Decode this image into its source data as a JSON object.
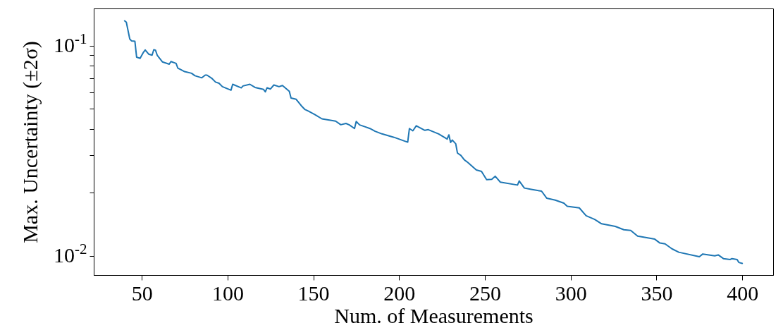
{
  "chart_data": {
    "type": "line",
    "xlabel": "Num. of Measurements",
    "ylabel": "Max. Uncertainty (±2σ)",
    "log": "y",
    "grid": false,
    "marker": "none",
    "line_style": "solid",
    "xlim": [
      22,
      418
    ],
    "xticks": [
      50,
      100,
      150,
      200,
      250,
      300,
      350,
      400
    ],
    "ylim": [
      0.0081,
      0.15
    ],
    "yticks": [
      {
        "value": 0.01,
        "label": "10$^{-2}$"
      },
      {
        "value": 0.02,
        "label": null
      },
      {
        "value": 0.03,
        "label": null
      },
      {
        "value": 0.04,
        "label": null
      },
      {
        "value": 0.05,
        "label": null
      },
      {
        "value": 0.06,
        "label": null
      },
      {
        "value": 0.07,
        "label": null
      },
      {
        "value": 0.08,
        "label": null
      },
      {
        "value": 0.09,
        "label": null
      },
      {
        "value": 0.1,
        "label": "10$^{-1}$"
      }
    ],
    "series": [
      {
        "color": "#1f77b4",
        "x": [
          40,
          41,
          43,
          44,
          46,
          47,
          49,
          51,
          52,
          54,
          56,
          57,
          58,
          59,
          62,
          66,
          67,
          70,
          71,
          75,
          79,
          81,
          85,
          87,
          88,
          91,
          93,
          95,
          97,
          102,
          103,
          108,
          109,
          113,
          116,
          121,
          122,
          123,
          125,
          127,
          130,
          132,
          136,
          137,
          140,
          143,
          145,
          147,
          151,
          155,
          163,
          166,
          169,
          171,
          174,
          175,
          177,
          180,
          183,
          186,
          190,
          197,
          205,
          206,
          208,
          210,
          215,
          217,
          223,
          228,
          229,
          230,
          231,
          233,
          234,
          236,
          238,
          240,
          245,
          248,
          251,
          254,
          256,
          259,
          269,
          270,
          273,
          277,
          283,
          286,
          291,
          296,
          298,
          305,
          309,
          314,
          318,
          326,
          331,
          335,
          339,
          349,
          352,
          355,
          359,
          363,
          375,
          377,
          384,
          386,
          389,
          393,
          394,
          397,
          398,
          400
        ],
        "values": [
          0.131,
          0.129,
          0.1074,
          0.1052,
          0.1047,
          0.088,
          0.0869,
          0.0929,
          0.0952,
          0.091,
          0.0899,
          0.0955,
          0.095,
          0.0899,
          0.0836,
          0.0815,
          0.0839,
          0.0822,
          0.0781,
          0.0751,
          0.0738,
          0.0718,
          0.0702,
          0.0723,
          0.0723,
          0.0696,
          0.067,
          0.0662,
          0.0637,
          0.0613,
          0.0654,
          0.0629,
          0.0642,
          0.0654,
          0.0632,
          0.0618,
          0.0602,
          0.0629,
          0.0621,
          0.0649,
          0.0637,
          0.0645,
          0.0605,
          0.0563,
          0.0555,
          0.0517,
          0.0497,
          0.0488,
          0.0469,
          0.0448,
          0.0437,
          0.042,
          0.0426,
          0.0419,
          0.0403,
          0.0435,
          0.0419,
          0.0411,
          0.0403,
          0.0391,
          0.038,
          0.0366,
          0.0347,
          0.0403,
          0.0393,
          0.0415,
          0.0395,
          0.0398,
          0.038,
          0.0359,
          0.0376,
          0.0346,
          0.0355,
          0.0341,
          0.0308,
          0.03,
          0.0286,
          0.0278,
          0.0256,
          0.0252,
          0.023,
          0.0231,
          0.0239,
          0.0224,
          0.0217,
          0.0227,
          0.021,
          0.0207,
          0.0203,
          0.0188,
          0.0184,
          0.0178,
          0.0172,
          0.0169,
          0.0155,
          0.0149,
          0.0142,
          0.0138,
          0.0133,
          0.0132,
          0.0124,
          0.012,
          0.0115,
          0.0114,
          0.0108,
          0.0104,
          0.0099,
          0.0102,
          0.01,
          0.0101,
          0.0097,
          0.0096,
          0.0097,
          0.0096,
          0.0093,
          0.0092
        ]
      }
    ]
  }
}
